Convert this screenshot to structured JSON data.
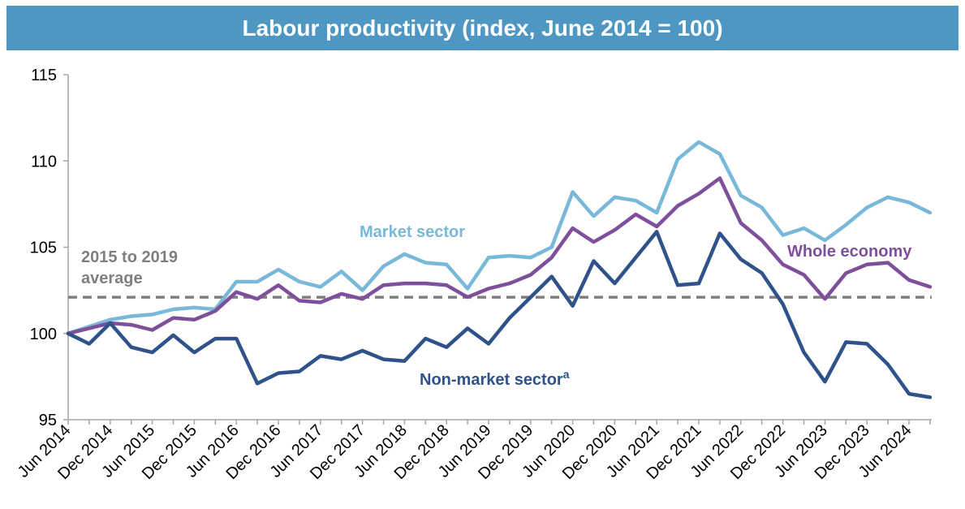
{
  "colors": {
    "title_bar": "#4f97c3",
    "market_sector": "#78b8d8",
    "whole_economy": "#7e4f9a",
    "non_market_sector": "#2e5289",
    "average_line": "#7f7f7f",
    "axis": "#a6a6a6"
  },
  "chart_data": {
    "type": "line",
    "title": "Labour productivity (index, June 2014 = 100)",
    "xlabel": "",
    "ylabel": "",
    "ylim": [
      95,
      115
    ],
    "yticks": [
      "95",
      "100",
      "105",
      "110",
      "115"
    ],
    "grid": false,
    "x": [
      "Jun 2014",
      "Sep 2014",
      "Dec 2014",
      "Mar 2015",
      "Jun 2015",
      "Sep 2015",
      "Dec 2015",
      "Mar 2016",
      "Jun 2016",
      "Sep 2016",
      "Dec 2016",
      "Mar 2017",
      "Jun 2017",
      "Sep 2017",
      "Dec 2017",
      "Mar 2018",
      "Jun 2018",
      "Sep 2018",
      "Dec 2018",
      "Mar 2019",
      "Jun 2019",
      "Sep 2019",
      "Dec 2019",
      "Mar 2020",
      "Jun 2020",
      "Sep 2020",
      "Dec 2020",
      "Mar 2021",
      "Jun 2021",
      "Sep 2021",
      "Dec 2021",
      "Mar 2022",
      "Jun 2022",
      "Sep 2022",
      "Dec 2022",
      "Mar 2023",
      "Jun 2023",
      "Sep 2023",
      "Dec 2023",
      "Mar 2024",
      "Jun 2024",
      "Sep 2024"
    ],
    "x_tick_labels": [
      "Jun 2014",
      "Dec 2014",
      "Jun 2015",
      "Dec 2015",
      "Jun 2016",
      "Dec 2016",
      "Jun 2017",
      "Dec 2017",
      "Jun 2018",
      "Dec 2018",
      "Jun 2019",
      "Dec 2019",
      "Jun 2020",
      "Dec 2020",
      "Jun 2021",
      "Dec 2021",
      "Jun 2022",
      "Dec 2022",
      "Jun 2023",
      "Dec 2023",
      "Jun 2024"
    ],
    "series": [
      {
        "name": "Market sector",
        "color": "#78b8d8",
        "values": [
          100.0,
          100.4,
          100.8,
          101.0,
          101.1,
          101.4,
          101.5,
          101.4,
          103.0,
          103.0,
          103.7,
          103.0,
          102.7,
          103.6,
          102.5,
          103.9,
          104.6,
          104.1,
          104.0,
          102.6,
          104.4,
          104.5,
          104.4,
          105.0,
          108.2,
          106.8,
          107.9,
          107.7,
          107.0,
          110.1,
          111.1,
          110.4,
          108.0,
          107.3,
          105.7,
          106.1,
          105.4,
          106.3,
          107.3,
          107.9,
          107.6,
          107.0
        ]
      },
      {
        "name": "Whole economy",
        "color": "#7e4f9a",
        "values": [
          100.0,
          100.3,
          100.6,
          100.5,
          100.2,
          100.9,
          100.8,
          101.3,
          102.4,
          102.0,
          102.8,
          101.9,
          101.8,
          102.3,
          102.0,
          102.8,
          102.9,
          102.9,
          102.8,
          102.1,
          102.6,
          102.9,
          103.4,
          104.4,
          106.1,
          105.3,
          106.0,
          106.9,
          106.2,
          107.4,
          108.1,
          109.0,
          106.4,
          105.4,
          104.0,
          103.4,
          102.0,
          103.5,
          104.0,
          104.1,
          103.1,
          102.7
        ]
      },
      {
        "name": "Non-market sector",
        "label_superscript": "a",
        "color": "#2e5289",
        "values": [
          100.0,
          99.4,
          100.6,
          99.2,
          98.9,
          99.9,
          98.9,
          99.7,
          99.7,
          97.1,
          97.7,
          97.8,
          98.7,
          98.5,
          99.0,
          98.5,
          98.4,
          99.7,
          99.2,
          100.3,
          99.4,
          100.9,
          102.1,
          103.3,
          101.6,
          104.2,
          102.9,
          104.4,
          105.9,
          102.8,
          102.9,
          105.8,
          104.3,
          103.5,
          101.7,
          98.9,
          97.2,
          99.5,
          99.4,
          98.2,
          96.5,
          96.3
        ]
      }
    ],
    "reference_line": {
      "value": 102.1,
      "label_line1": "2015 to 2019",
      "label_line2": "average",
      "style": "dashed"
    }
  }
}
